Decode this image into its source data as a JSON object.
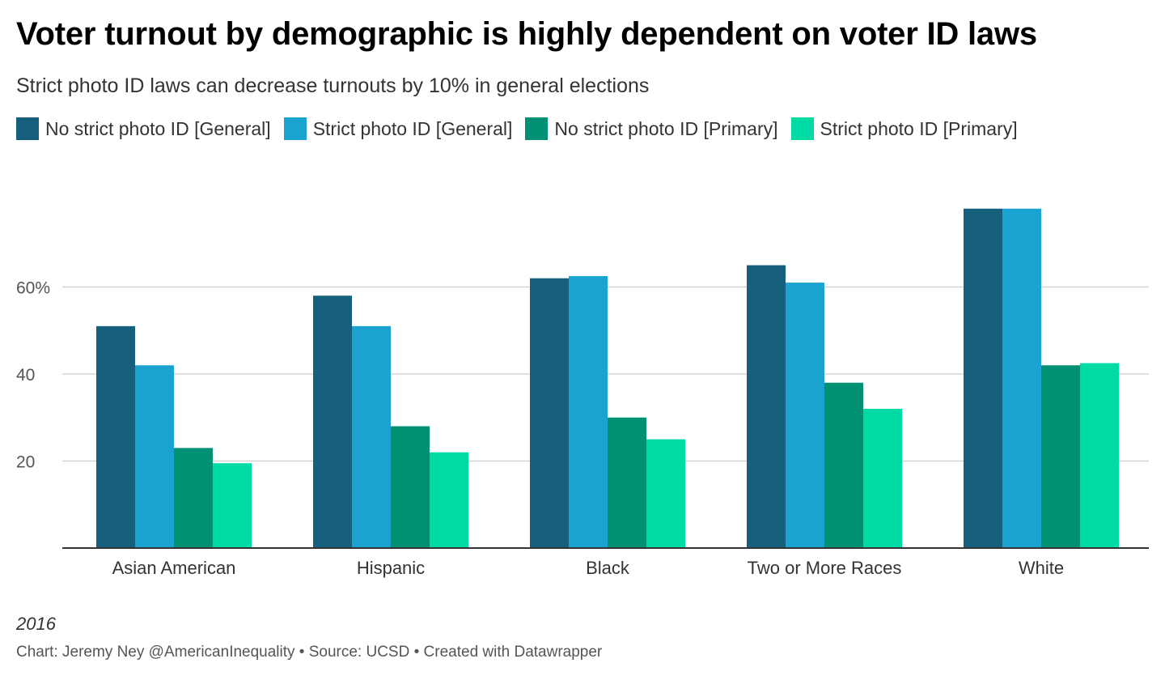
{
  "header": {
    "title": "Voter turnout by demographic is highly dependent on voter ID laws",
    "subtitle": "Strict photo ID laws can decrease turnouts by 10% in general elections"
  },
  "notes": {
    "year": "2016",
    "footer": "Chart: Jeremy Ney @AmericanInequality • Source: UCSD • Created with Datawrapper"
  },
  "chart_data": {
    "type": "bar",
    "title": "Voter turnout by demographic is highly dependent on voter ID laws",
    "subtitle": "Strict photo ID laws can decrease turnouts by 10% in general elections",
    "categories": [
      "Asian American",
      "Hispanic",
      "Black",
      "Two or More Races",
      "White"
    ],
    "series": [
      {
        "name": "No strict photo ID [General]",
        "color": "#17607d",
        "values": [
          51,
          58,
          62,
          65,
          78
        ]
      },
      {
        "name": "Strict photo ID [General]",
        "color": "#1aa3d0",
        "values": [
          42,
          51,
          62.5,
          61,
          78
        ]
      },
      {
        "name": "No strict photo ID [Primary]",
        "color": "#009174",
        "values": [
          23,
          28,
          30,
          38,
          42
        ]
      },
      {
        "name": "Strict photo ID [Primary]",
        "color": "#00dba5",
        "values": [
          19.5,
          22,
          25,
          32,
          42.5
        ]
      }
    ],
    "yticks": [
      20,
      40,
      60
    ],
    "ytick_labels": [
      "20",
      "40",
      "60%"
    ],
    "ylim": [
      0,
      80
    ],
    "grid": true,
    "legend": "top-left"
  }
}
